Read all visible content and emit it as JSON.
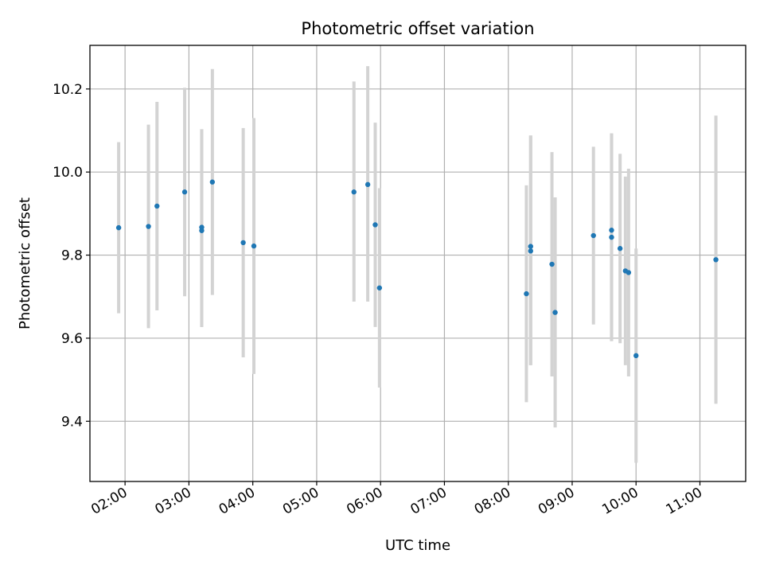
{
  "chart_data": {
    "type": "scatter",
    "title": "Photometric offset variation",
    "xlabel": "UTC time",
    "ylabel": "Photometric offset",
    "x_unit": "time (HH:MM UTC)",
    "xlim": [
      "01:27",
      "11:43"
    ],
    "ylim": [
      9.255,
      10.305
    ],
    "x_ticks": [
      "02:00",
      "03:00",
      "04:00",
      "05:00",
      "06:00",
      "07:00",
      "08:00",
      "09:00",
      "10:00",
      "11:00"
    ],
    "y_ticks": [
      9.4,
      9.6,
      9.8,
      10.0,
      10.2
    ],
    "y_tick_labels": [
      "9.4",
      "9.6",
      "9.8",
      "10.0",
      "10.2"
    ],
    "grid": true,
    "point_color": "#1f77b4",
    "errorbar_color": "#d3d3d3",
    "points": [
      {
        "t": "01:54",
        "y": 9.866,
        "ylo": 9.66,
        "yhi": 10.072
      },
      {
        "t": "02:22",
        "y": 9.869,
        "ylo": 9.624,
        "yhi": 10.114
      },
      {
        "t": "02:30",
        "y": 9.918,
        "ylo": 9.667,
        "yhi": 10.169
      },
      {
        "t": "02:56",
        "y": 9.952,
        "ylo": 9.701,
        "yhi": 10.203
      },
      {
        "t": "03:12",
        "y": 9.867,
        "ylo": 9.627,
        "yhi": 10.103
      },
      {
        "t": "03:12",
        "y": 9.859,
        "ylo": 9.627,
        "yhi": 10.103
      },
      {
        "t": "03:22",
        "y": 9.976,
        "ylo": 9.704,
        "yhi": 10.248
      },
      {
        "t": "03:51",
        "y": 9.83,
        "ylo": 9.554,
        "yhi": 10.106
      },
      {
        "t": "04:01",
        "y": 9.822,
        "ylo": 9.514,
        "yhi": 10.13
      },
      {
        "t": "05:35",
        "y": 9.952,
        "ylo": 9.688,
        "yhi": 10.218
      },
      {
        "t": "05:48",
        "y": 9.97,
        "ylo": 9.688,
        "yhi": 10.255
      },
      {
        "t": "05:55",
        "y": 9.873,
        "ylo": 9.627,
        "yhi": 10.119
      },
      {
        "t": "05:59",
        "y": 9.721,
        "ylo": 9.481,
        "yhi": 9.961
      },
      {
        "t": "08:17",
        "y": 9.707,
        "ylo": 9.446,
        "yhi": 9.968
      },
      {
        "t": "08:21",
        "y": 9.821,
        "ylo": 9.535,
        "yhi": 10.088
      },
      {
        "t": "08:21",
        "y": 9.81,
        "ylo": 9.535,
        "yhi": 10.088
      },
      {
        "t": "08:41",
        "y": 9.778,
        "ylo": 9.508,
        "yhi": 10.048
      },
      {
        "t": "08:44",
        "y": 9.662,
        "ylo": 9.385,
        "yhi": 9.939
      },
      {
        "t": "09:20",
        "y": 9.847,
        "ylo": 9.633,
        "yhi": 10.061
      },
      {
        "t": "09:37",
        "y": 9.86,
        "ylo": 9.593,
        "yhi": 10.093
      },
      {
        "t": "09:37",
        "y": 9.843,
        "ylo": 9.593,
        "yhi": 10.093
      },
      {
        "t": "09:45",
        "y": 9.816,
        "ylo": 9.588,
        "yhi": 10.044
      },
      {
        "t": "09:50",
        "y": 9.762,
        "ylo": 9.535,
        "yhi": 9.989
      },
      {
        "t": "09:53",
        "y": 9.758,
        "ylo": 9.508,
        "yhi": 10.008
      },
      {
        "t": "10:00",
        "y": 9.558,
        "ylo": 9.3,
        "yhi": 9.816
      },
      {
        "t": "11:15",
        "y": 9.789,
        "ylo": 9.442,
        "yhi": 10.136
      }
    ]
  }
}
